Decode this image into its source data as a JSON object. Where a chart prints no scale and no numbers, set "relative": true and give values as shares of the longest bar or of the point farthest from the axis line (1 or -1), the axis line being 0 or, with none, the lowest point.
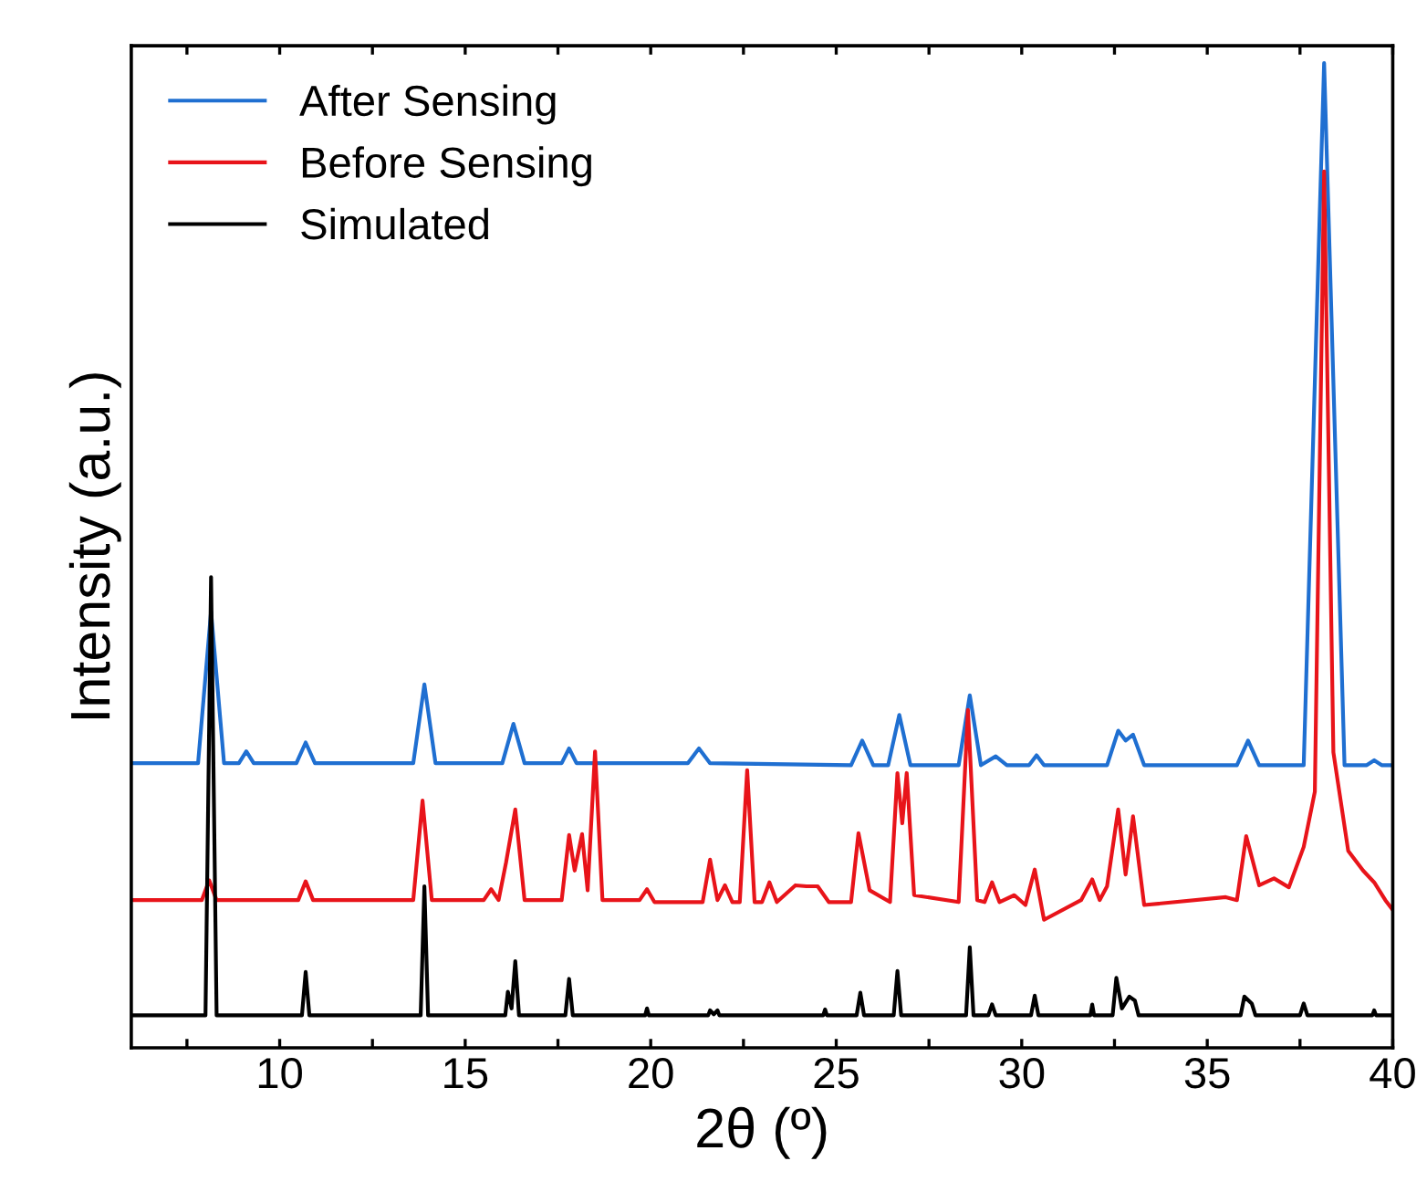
{
  "chart_data": {
    "type": "line",
    "relative": true,
    "xlabel": "2θ (º)",
    "ylabel": "Intensity (a.u.)",
    "xlim": [
      6,
      40
    ],
    "xticks": [
      {
        "value": 7.5,
        "label": null
      },
      10,
      {
        "value": 12.5,
        "label": null
      },
      15,
      {
        "value": 17.5,
        "label": null
      },
      20,
      {
        "value": 22.5,
        "label": null
      },
      25,
      {
        "value": 27.5,
        "label": null
      },
      30,
      {
        "value": 32.5,
        "label": null
      },
      35,
      {
        "value": 37.5,
        "label": null
      },
      40
    ],
    "tick_labels": "x",
    "grid": false,
    "legend": "top left",
    "marker": "none",
    "line_style": "solid",
    "series": [
      {
        "name": "After Sensing",
        "color": "#1f6fd1",
        "x": [
          6,
          7.8,
          8.15,
          8.5,
          8.9,
          9.1,
          9.3,
          10.45,
          10.7,
          10.95,
          13.6,
          13.9,
          14.2,
          16.0,
          16.3,
          16.6,
          17.6,
          17.8,
          18.0,
          21.0,
          21.3,
          21.6,
          25.4,
          25.7,
          26.0,
          26.4,
          26.7,
          27.0,
          28.3,
          28.6,
          28.9,
          29.3,
          29.6,
          30.2,
          30.4,
          30.6,
          32.3,
          32.6,
          32.8,
          33.0,
          33.3,
          35.8,
          36.1,
          36.4,
          37.6,
          38.15,
          38.7,
          39.3,
          39.5,
          39.7,
          40
        ],
        "values": [
          0.289,
          0.289,
          0.443,
          0.289,
          0.289,
          0.301,
          0.289,
          0.289,
          0.31,
          0.289,
          0.289,
          0.369,
          0.289,
          0.289,
          0.329,
          0.289,
          0.289,
          0.304,
          0.289,
          0.289,
          0.304,
          0.289,
          0.287,
          0.312,
          0.287,
          0.287,
          0.338,
          0.287,
          0.287,
          0.358,
          0.287,
          0.296,
          0.287,
          0.287,
          0.297,
          0.287,
          0.287,
          0.322,
          0.312,
          0.318,
          0.287,
          0.287,
          0.312,
          0.287,
          0.287,
          1.0,
          0.287,
          0.287,
          0.292,
          0.287,
          0.287
        ]
      },
      {
        "name": "Before Sensing",
        "color": "#e8141a",
        "x": [
          6,
          7.9,
          8.1,
          8.3,
          10.5,
          10.7,
          10.9,
          13.6,
          13.85,
          14.1,
          15.5,
          15.7,
          15.9,
          16.1,
          16.35,
          16.6,
          17.6,
          17.8,
          17.95,
          18.15,
          18.3,
          18.5,
          18.7,
          19.7,
          19.9,
          20.1,
          21.4,
          21.6,
          21.8,
          22.0,
          22.2,
          22.4,
          22.6,
          22.8,
          23.0,
          23.2,
          23.4,
          23.9,
          24.2,
          24.5,
          24.8,
          25.4,
          25.6,
          25.9,
          26.45,
          26.65,
          26.78,
          26.9,
          27.1,
          28.3,
          28.55,
          28.8,
          29.0,
          29.2,
          29.4,
          29.8,
          30.1,
          30.35,
          30.6,
          31.6,
          31.9,
          32.1,
          32.3,
          32.6,
          32.8,
          33.0,
          33.3,
          35.5,
          35.8,
          36.05,
          36.4,
          36.8,
          37.2,
          37.6,
          37.9,
          38.15,
          38.4,
          38.6,
          38.8,
          39.2,
          39.5,
          39.8,
          40
        ],
        "values": [
          0.15,
          0.15,
          0.17,
          0.15,
          0.15,
          0.169,
          0.15,
          0.15,
          0.251,
          0.15,
          0.15,
          0.161,
          0.15,
          0.188,
          0.242,
          0.15,
          0.15,
          0.216,
          0.18,
          0.217,
          0.16,
          0.301,
          0.15,
          0.15,
          0.161,
          0.148,
          0.148,
          0.191,
          0.15,
          0.165,
          0.148,
          0.148,
          0.282,
          0.148,
          0.148,
          0.168,
          0.148,
          0.165,
          0.164,
          0.164,
          0.148,
          0.148,
          0.218,
          0.16,
          0.148,
          0.279,
          0.228,
          0.279,
          0.155,
          0.148,
          0.343,
          0.15,
          0.148,
          0.168,
          0.148,
          0.155,
          0.145,
          0.181,
          0.13,
          0.15,
          0.171,
          0.15,
          0.164,
          0.242,
          0.176,
          0.235,
          0.145,
          0.153,
          0.15,
          0.215,
          0.165,
          0.172,
          0.163,
          0.204,
          0.26,
          0.89,
          0.3,
          0.25,
          0.2,
          0.18,
          0.168,
          0.15,
          0.14
        ]
      },
      {
        "name": "Simulated",
        "color": "#000000",
        "x": [
          6,
          8.0,
          8.15,
          8.3,
          10.6,
          10.7,
          10.8,
          13.8,
          13.9,
          14.0,
          16.08,
          16.15,
          16.25,
          16.35,
          16.45,
          17.7,
          17.8,
          17.9,
          19.85,
          19.9,
          19.95,
          21.55,
          21.6,
          21.7,
          21.8,
          21.85,
          24.65,
          24.7,
          24.75,
          25.55,
          25.65,
          25.75,
          26.55,
          26.65,
          26.75,
          28.5,
          28.6,
          28.7,
          29.1,
          29.2,
          29.3,
          30.25,
          30.35,
          30.45,
          31.85,
          31.9,
          31.95,
          32.45,
          32.55,
          32.7,
          32.9,
          33.05,
          33.15,
          35.9,
          36.0,
          36.2,
          36.3,
          37.5,
          37.6,
          37.7,
          39.45,
          39.5,
          39.55,
          40
        ],
        "values": [
          0.033,
          0.033,
          0.478,
          0.033,
          0.033,
          0.077,
          0.033,
          0.033,
          0.164,
          0.033,
          0.033,
          0.057,
          0.04,
          0.088,
          0.033,
          0.033,
          0.07,
          0.033,
          0.033,
          0.04,
          0.033,
          0.033,
          0.038,
          0.034,
          0.038,
          0.033,
          0.033,
          0.039,
          0.033,
          0.033,
          0.056,
          0.033,
          0.033,
          0.078,
          0.033,
          0.033,
          0.102,
          0.033,
          0.033,
          0.044,
          0.033,
          0.033,
          0.053,
          0.033,
          0.033,
          0.044,
          0.033,
          0.033,
          0.071,
          0.04,
          0.052,
          0.048,
          0.033,
          0.033,
          0.052,
          0.045,
          0.033,
          0.033,
          0.045,
          0.033,
          0.033,
          0.038,
          0.033,
          0.033
        ]
      }
    ]
  }
}
